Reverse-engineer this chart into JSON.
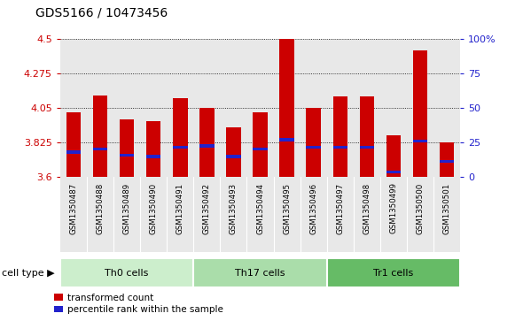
{
  "title": "GDS5166 / 10473456",
  "samples": [
    "GSM1350487",
    "GSM1350488",
    "GSM1350489",
    "GSM1350490",
    "GSM1350491",
    "GSM1350492",
    "GSM1350493",
    "GSM1350494",
    "GSM1350495",
    "GSM1350496",
    "GSM1350497",
    "GSM1350498",
    "GSM1350499",
    "GSM1350500",
    "GSM1350501"
  ],
  "red_values": [
    4.02,
    4.13,
    3.97,
    3.96,
    4.11,
    4.05,
    3.92,
    4.02,
    4.5,
    4.05,
    4.12,
    4.12,
    3.87,
    4.42,
    3.82
  ],
  "blue_values": [
    3.76,
    3.78,
    3.74,
    3.73,
    3.79,
    3.8,
    3.73,
    3.78,
    3.84,
    3.79,
    3.79,
    3.79,
    3.63,
    3.83,
    3.7
  ],
  "ymin": 3.6,
  "ymax": 4.5,
  "yticks": [
    3.6,
    3.825,
    4.05,
    4.275,
    4.5
  ],
  "ytick_labels": [
    "3.6",
    "3.825",
    "4.05",
    "4.275",
    "4.5"
  ],
  "right_yticks": [
    0,
    25,
    50,
    75,
    100
  ],
  "right_ytick_labels": [
    "0",
    "25",
    "50",
    "75",
    "100%"
  ],
  "bar_color": "#cc0000",
  "blue_color": "#2222cc",
  "bar_width": 0.55,
  "plot_bg_color": "#e8e8e8",
  "title_fontsize": 10,
  "axis_color_left": "#cc0000",
  "axis_color_right": "#2222cc",
  "group_defs": [
    {
      "start": 0,
      "end": 4,
      "label": "Th0 cells",
      "color": "#cceecc"
    },
    {
      "start": 5,
      "end": 9,
      "label": "Th17 cells",
      "color": "#aaddaa"
    },
    {
      "start": 10,
      "end": 14,
      "label": "Tr1 cells",
      "color": "#66bb66"
    }
  ]
}
